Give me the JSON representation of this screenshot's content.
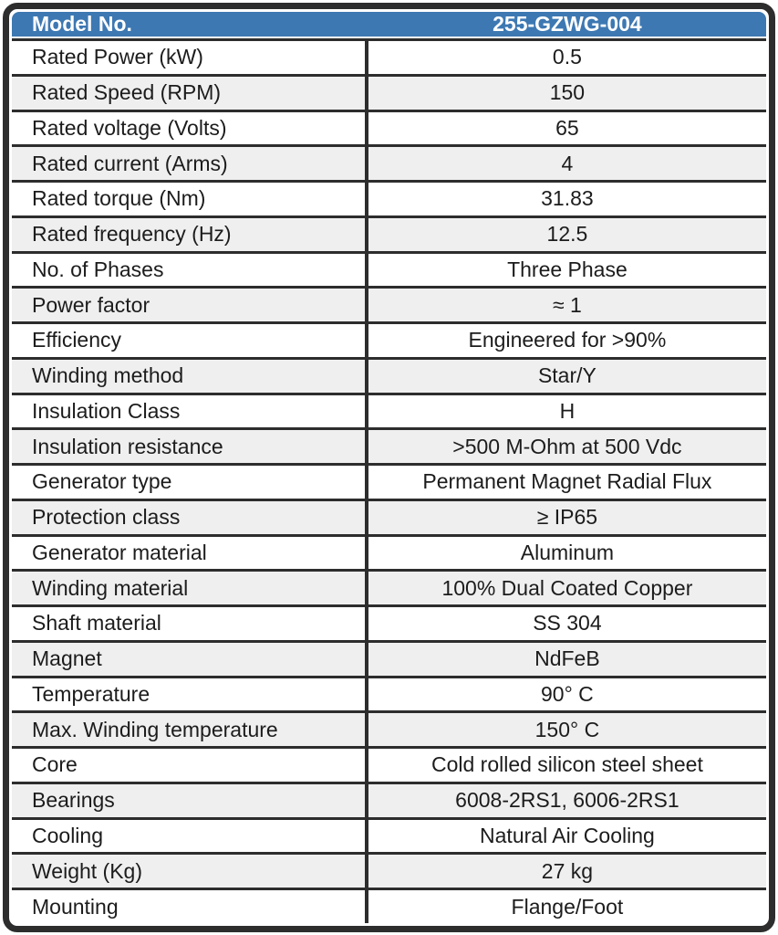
{
  "colors": {
    "header_bg": "#3d78b2",
    "header_text": "#ffffff",
    "border_dark": "#2d2d2d",
    "row_alt_bg": "#efefef",
    "body_text": "#1c1c1c"
  },
  "table": {
    "header": {
      "label": "Model No.",
      "value": "255-GZWG-004"
    },
    "rows": [
      {
        "label": "Rated Power (kW)",
        "value": "0.5"
      },
      {
        "label": "Rated Speed (RPM)",
        "value": "150"
      },
      {
        "label": "Rated voltage (Volts)",
        "value": "65"
      },
      {
        "label": "Rated current (Arms)",
        "value": "4"
      },
      {
        "label": "Rated torque (Nm)",
        "value": "31.83"
      },
      {
        "label": "Rated frequency (Hz)",
        "value": "12.5"
      },
      {
        "label": "No. of Phases",
        "value": "Three Phase"
      },
      {
        "label": "Power factor",
        "value": "≈ 1"
      },
      {
        "label": "Efficiency",
        "value": "Engineered for >90%"
      },
      {
        "label": "Winding method",
        "value": "Star/Y"
      },
      {
        "label": "Insulation Class",
        "value": "H"
      },
      {
        "label": "Insulation resistance",
        "value": ">500 M-Ohm at 500 Vdc"
      },
      {
        "label": "Generator type",
        "value": "Permanent Magnet Radial Flux"
      },
      {
        "label": "Protection class",
        "value": "≥ IP65"
      },
      {
        "label": "Generator material",
        "value": "Aluminum"
      },
      {
        "label": "Winding material",
        "value": "100% Dual Coated Copper"
      },
      {
        "label": "Shaft material",
        "value": "SS 304"
      },
      {
        "label": "Magnet",
        "value": "NdFeB"
      },
      {
        "label": "Temperature",
        "value": "90° C"
      },
      {
        "label": "Max. Winding temperature",
        "value": "150° C"
      },
      {
        "label": "Core",
        "value": "Cold rolled silicon steel sheet"
      },
      {
        "label": "Bearings",
        "value": "6008-2RS1, 6006-2RS1"
      },
      {
        "label": "Cooling",
        "value": "Natural Air Cooling"
      },
      {
        "label": "Weight (Kg)",
        "value": "27 kg"
      },
      {
        "label": "Mounting",
        "value": "Flange/Foot"
      }
    ]
  }
}
